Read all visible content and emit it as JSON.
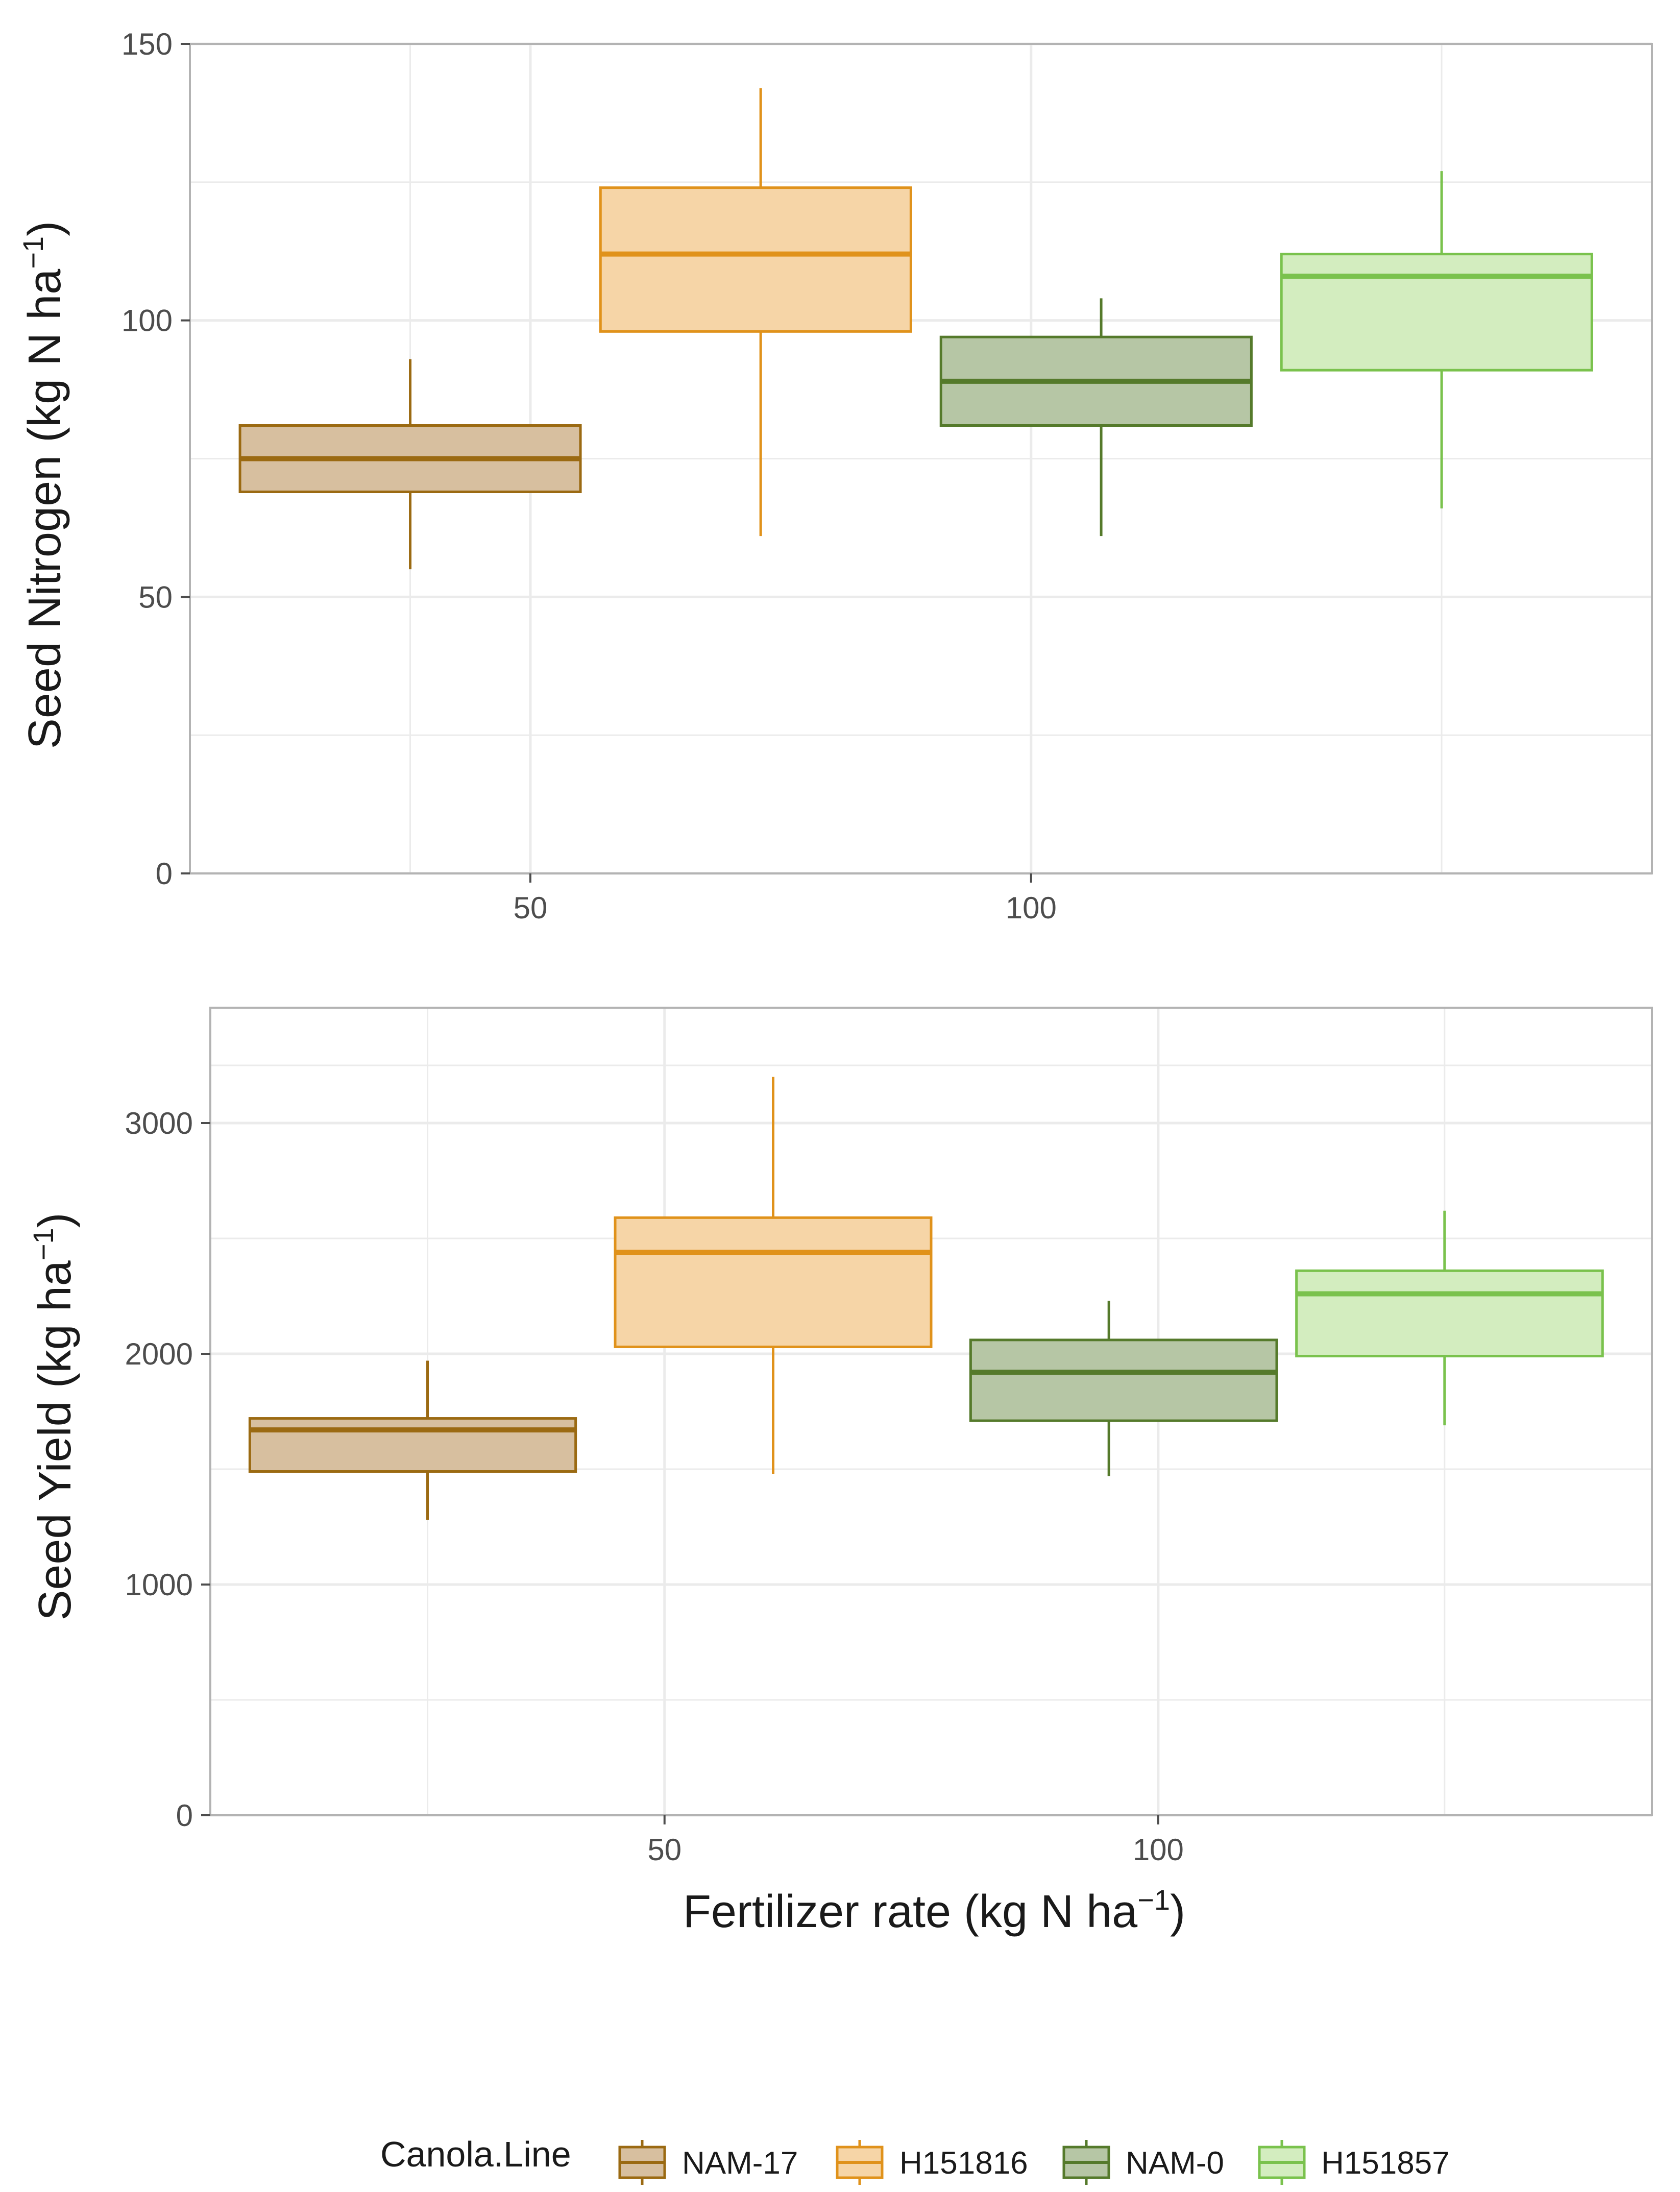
{
  "chart_data": [
    {
      "type": "box",
      "title": "",
      "xlabel": "",
      "ylabel_main": "Seed Nitrogen (kg N ha",
      "ylabel_sup": "−1",
      "ylabel_close": ")",
      "ylim": [
        0,
        150
      ],
      "yticks": [
        0,
        50,
        100,
        150
      ],
      "ytick_labels": [
        "0",
        "50",
        "100",
        "150"
      ],
      "xlim": [
        16,
        162
      ],
      "xticks": [
        50,
        100
      ],
      "xtick_labels": [
        "50",
        "100"
      ],
      "boxes": [
        {
          "name": "NAM-17",
          "x_left": 21,
          "x_right": 55,
          "whisker_x": 38,
          "min": 55,
          "q1": 69,
          "median": 75,
          "q3": 81,
          "max": 93
        },
        {
          "name": "H151816",
          "x_left": 57,
          "x_right": 88,
          "whisker_x": 73,
          "min": 61,
          "q1": 98,
          "median": 112,
          "q3": 124,
          "max": 142
        },
        {
          "name": "NAM-0",
          "x_left": 91,
          "x_right": 122,
          "whisker_x": 107,
          "min": 61,
          "q1": 81,
          "median": 89,
          "q3": 97,
          "max": 104
        },
        {
          "name": "H151857",
          "x_left": 125,
          "x_right": 156,
          "whisker_x": 141,
          "min": 66,
          "q1": 91,
          "median": 108,
          "q3": 112,
          "max": 127
        }
      ]
    },
    {
      "type": "box",
      "title": "",
      "xlabel_main": "Fertilizer rate (kg N ha",
      "xlabel_sup": "−1",
      "xlabel_close": ")",
      "ylabel_main": "Seed Yield (kg ha",
      "ylabel_sup": "−1",
      "ylabel_close": ")",
      "ylim": [
        0,
        3500
      ],
      "yticks": [
        0,
        1000,
        2000,
        3000
      ],
      "ytick_labels": [
        "0",
        "1000",
        "2000",
        "3000"
      ],
      "xlim": [
        4,
        150
      ],
      "xticks": [
        50,
        100
      ],
      "xtick_labels": [
        "50",
        "100"
      ],
      "boxes": [
        {
          "name": "NAM-17",
          "x_left": 8,
          "x_right": 41,
          "whisker_x": 26,
          "min": 1280,
          "q1": 1490,
          "median": 1670,
          "q3": 1720,
          "max": 1970
        },
        {
          "name": "H151816",
          "x_left": 45,
          "x_right": 77,
          "whisker_x": 61,
          "min": 1480,
          "q1": 2030,
          "median": 2440,
          "q3": 2590,
          "max": 3200
        },
        {
          "name": "NAM-0",
          "x_left": 81,
          "x_right": 112,
          "whisker_x": 95,
          "min": 1470,
          "q1": 1710,
          "median": 1920,
          "q3": 2060,
          "max": 2230
        },
        {
          "name": "H151857",
          "x_left": 114,
          "x_right": 145,
          "whisker_x": 129,
          "min": 1690,
          "q1": 1990,
          "median": 2260,
          "q3": 2360,
          "max": 2620
        }
      ]
    }
  ],
  "legend": {
    "title": "Canola.Line",
    "position": "bottom",
    "entries": [
      {
        "name": "NAM-17",
        "fill": "#d7bf9f",
        "stroke": "#9b6a12"
      },
      {
        "name": "H151816",
        "fill": "#f6d5a7",
        "stroke": "#e0921b"
      },
      {
        "name": "NAM-0",
        "fill": "#b6c6a5",
        "stroke": "#557a2b"
      },
      {
        "name": "H151857",
        "fill": "#d3edbf",
        "stroke": "#7ac24d"
      }
    ]
  },
  "colors": {
    "grid": "#ebebeb",
    "panel_border": "#b3b3b3",
    "tick": "#4d4d4d"
  }
}
